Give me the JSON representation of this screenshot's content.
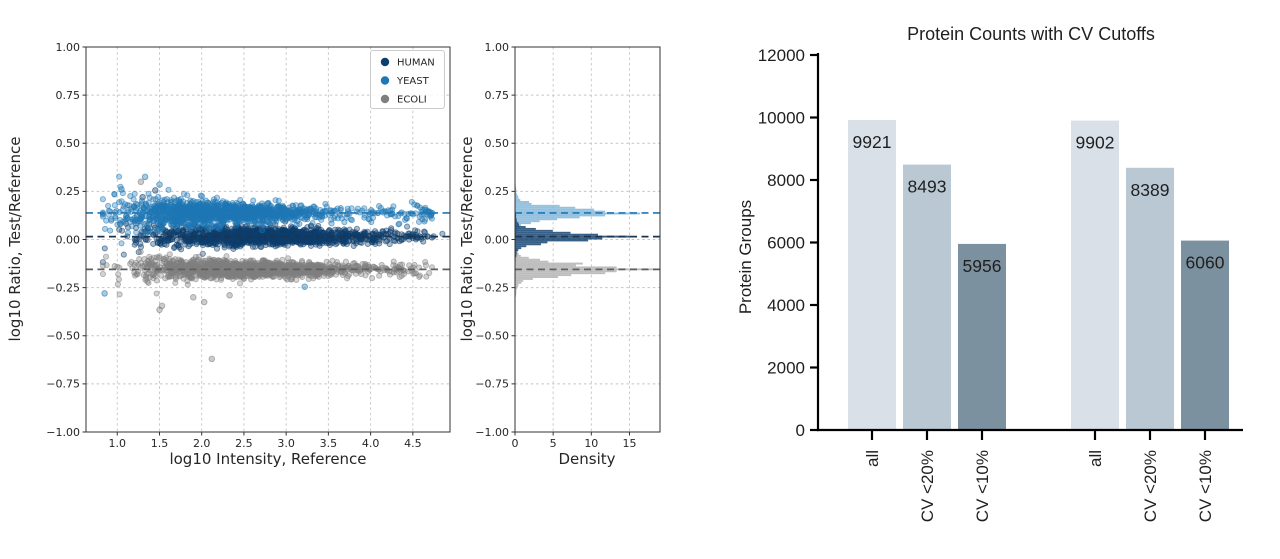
{
  "chart_data": [
    {
      "id": "ratio-intensity-scatter",
      "type": "scatter",
      "xlabel": "log10 Intensity, Reference",
      "ylabel": "log10 Ratio, Test/Reference",
      "xlim": [
        0.63,
        4.94
      ],
      "ylim": [
        -1.0,
        1.0
      ],
      "xticks": [
        1.0,
        1.5,
        2.0,
        2.5,
        3.0,
        3.5,
        4.0,
        4.5
      ],
      "yticks": [
        1.0,
        0.75,
        0.5,
        0.25,
        0.0,
        -0.25,
        -0.5,
        -0.75,
        -1.0
      ],
      "grid": true,
      "legend_position": "upper right",
      "series": [
        {
          "name": "HUMAN",
          "color": "#0d3e6e",
          "median_log_ratio": 0.015,
          "x_center": 2.75,
          "x_spread": 0.62,
          "y_spread_near": 0.065,
          "y_spread_far": 0.018,
          "n_points": 1500,
          "outliers": [
            [
              1.45,
              0.255
            ],
            [
              1.62,
              -0.125
            ],
            [
              1.3,
              0.22
            ]
          ]
        },
        {
          "name": "YEAST",
          "color": "#1f77b4",
          "median_log_ratio": 0.138,
          "x_center": 2.15,
          "x_spread": 0.55,
          "y_spread_near": 0.07,
          "y_spread_far": 0.02,
          "n_points": 1500,
          "outliers": [
            [
              0.85,
              -0.28
            ],
            [
              1.05,
              0.26
            ],
            [
              1.33,
              0.325
            ],
            [
              1.5,
              0.285
            ],
            [
              3.22,
              -0.245
            ],
            [
              2.02,
              -0.185
            ]
          ]
        },
        {
          "name": "ECOLI",
          "color": "#7f7f7f",
          "median_log_ratio": -0.155,
          "x_center": 2.55,
          "x_spread": 0.58,
          "y_spread_near": 0.058,
          "y_spread_far": 0.016,
          "n_points": 1500,
          "outliers": [
            [
              2.12,
              -0.62
            ],
            [
              1.5,
              -0.365
            ],
            [
              1.53,
              -0.345
            ],
            [
              2.03,
              -0.325
            ],
            [
              1.9,
              -0.3
            ],
            [
              2.33,
              -0.29
            ],
            [
              1.28,
              0.3
            ]
          ]
        }
      ],
      "reference_lines": [
        {
          "series": "YEAST",
          "y": 0.138,
          "color": "#1f77b4",
          "style": "dashed"
        },
        {
          "series": "HUMAN",
          "y": 0.015,
          "color": "#1c3450",
          "style": "dashed"
        },
        {
          "series": "ECOLI",
          "y": -0.155,
          "color": "#5f5f5f",
          "style": "dashed"
        }
      ]
    },
    {
      "id": "ratio-density-histogram",
      "type": "area",
      "xlabel": "Density",
      "ylabel": "log10 Ratio, Test/Reference",
      "xlim": [
        0,
        19
      ],
      "ylim": [
        -1.0,
        1.0
      ],
      "xticks": [
        0,
        5,
        10,
        15
      ],
      "yticks": [
        1.0,
        0.75,
        0.5,
        0.25,
        0.0,
        -0.25,
        -0.5,
        -0.75,
        -1.0
      ],
      "grid": true,
      "series": [
        {
          "name": "HUMAN",
          "center": 0.015,
          "sigma": 0.023,
          "peak_density": 15.1,
          "bulk_density": 11.0,
          "color": "#1d4a75"
        },
        {
          "name": "YEAST",
          "center": 0.138,
          "sigma": 0.026,
          "peak_density": 16.4,
          "bulk_density": 11.5,
          "color": "#85b8dc"
        },
        {
          "name": "ECOLI",
          "center": -0.155,
          "sigma": 0.026,
          "peak_density": 18.5,
          "bulk_density": 14.0,
          "color": "#b5b5b5"
        }
      ],
      "reference_lines": [
        {
          "series": "YEAST",
          "y": 0.138,
          "color": "#1f77b4",
          "style": "dashed"
        },
        {
          "series": "HUMAN",
          "y": 0.015,
          "color": "#1c3450",
          "style": "dashed"
        },
        {
          "series": "ECOLI",
          "y": -0.155,
          "color": "#5f5f5f",
          "style": "dashed"
        }
      ]
    },
    {
      "id": "protein-counts-bar",
      "type": "bar",
      "title": "Protein Counts with CV Cutoffs",
      "ylabel": "Protein Groups",
      "ylim": [
        0,
        12000
      ],
      "yticks": [
        0,
        2000,
        4000,
        6000,
        8000,
        10000,
        12000
      ],
      "categories": [
        "all",
        "CV <20%",
        "CV <10%",
        "all",
        "CV <20%",
        "CV <10%"
      ],
      "values": [
        9921,
        8493,
        5956,
        9902,
        8389,
        6060
      ],
      "bar_colors": [
        "#d9e0e8",
        "#b9c8d3",
        "#7c91a0",
        "#d9e0e8",
        "#b9c8d3",
        "#7c91a0"
      ],
      "value_label_color": "#2f2f2f"
    }
  ],
  "colors": {
    "grid": "#c4c4c4",
    "spine": "#333333",
    "bar_axis": "#000000"
  }
}
